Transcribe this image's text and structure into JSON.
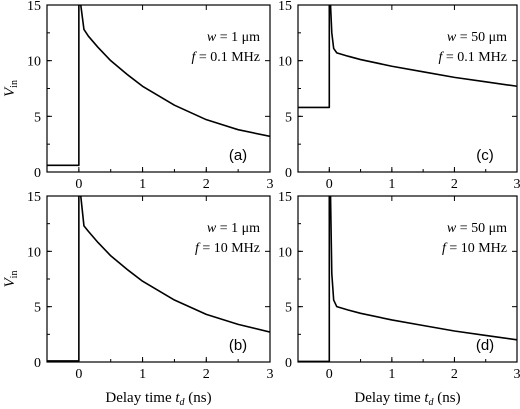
{
  "chart_data": [
    {
      "type": "line",
      "panel": "a",
      "label": "(a)",
      "params": [
        {
          "sym": "w",
          "rest": " = 1 μm"
        },
        {
          "sym": "f",
          "rest": " = 0.1 MHz"
        }
      ],
      "xlim": [
        -0.5,
        3
      ],
      "ylim": [
        0,
        15
      ],
      "xticks": [
        "0",
        "1",
        "2",
        "3"
      ],
      "yticks": [
        "0",
        "5",
        "10",
        "15"
      ],
      "ylabel": {
        "main": "V",
        "sub": "in"
      },
      "xlabel": "",
      "series": [
        {
          "x": [
            -0.5,
            -0.02,
            -0.02,
            0.0,
            0.0,
            0.03,
            0.08,
            0.15,
            0.3,
            0.5,
            0.75,
            1.0,
            1.5,
            2.0,
            2.5,
            3.0
          ],
          "y": [
            0.6,
            0.6,
            0.6,
            0.6,
            15,
            15,
            12.8,
            12.2,
            11.2,
            10.0,
            8.8,
            7.7,
            6.0,
            4.7,
            3.8,
            3.2
          ]
        }
      ]
    },
    {
      "type": "line",
      "panel": "c",
      "label": "(c)",
      "params": [
        {
          "sym": "w",
          "rest": " = 50 μm"
        },
        {
          "sym": "f",
          "rest": " = 0.1 MHz"
        }
      ],
      "xlim": [
        -0.5,
        3
      ],
      "ylim": [
        0,
        15
      ],
      "xticks": [
        "0",
        "1",
        "2",
        "3"
      ],
      "yticks": [
        "0",
        "5",
        "10",
        "15"
      ],
      "ylabel": {
        "main": "",
        "sub": ""
      },
      "xlabel": "",
      "series": [
        {
          "x": [
            -0.5,
            -0.02,
            0.0,
            0.0,
            0.02,
            0.04,
            0.07,
            0.12,
            0.3,
            0.5,
            1.0,
            1.5,
            2.0,
            2.5,
            3.0
          ],
          "y": [
            5.8,
            5.8,
            5.8,
            15,
            15,
            12.5,
            11.1,
            10.7,
            10.4,
            10.1,
            9.5,
            9.0,
            8.5,
            8.1,
            7.7
          ]
        }
      ]
    },
    {
      "type": "line",
      "panel": "b",
      "label": "(b)",
      "params": [
        {
          "sym": "w",
          "rest": " = 1 μm"
        },
        {
          "sym": "f",
          "rest": " = 10 MHz"
        }
      ],
      "xlim": [
        -0.5,
        3
      ],
      "ylim": [
        0,
        15
      ],
      "xticks": [
        "0",
        "1",
        "2",
        "3"
      ],
      "yticks": [
        "0",
        "5",
        "10",
        "15"
      ],
      "ylabel": {
        "main": "V",
        "sub": "in"
      },
      "xlabel": {
        "main": "Delay time ",
        "sym": "t",
        "sub": "d",
        "unit": " (ns)"
      },
      "series": [
        {
          "x": [
            -0.5,
            -0.02,
            0.0,
            0.0,
            0.03,
            0.08,
            0.15,
            0.3,
            0.5,
            0.75,
            1.0,
            1.5,
            2.0,
            2.5,
            3.0
          ],
          "y": [
            0.1,
            0.1,
            0.1,
            15,
            15,
            12.3,
            11.8,
            10.8,
            9.6,
            8.4,
            7.3,
            5.6,
            4.3,
            3.4,
            2.7
          ]
        }
      ]
    },
    {
      "type": "line",
      "panel": "d",
      "label": "(d)",
      "params": [
        {
          "sym": "w",
          "rest": " = 50 μm"
        },
        {
          "sym": "f",
          "rest": " = 10 MHz"
        }
      ],
      "xlim": [
        -0.5,
        3
      ],
      "ylim": [
        0,
        15
      ],
      "xticks": [
        "0",
        "1",
        "2",
        "3"
      ],
      "yticks": [
        "0",
        "5",
        "10",
        "15"
      ],
      "ylabel": {
        "main": "",
        "sub": ""
      },
      "xlabel": {
        "main": "Delay time ",
        "sym": "t",
        "sub": "d",
        "unit": " (ns)"
      },
      "series": [
        {
          "x": [
            -0.5,
            -0.02,
            0.0,
            0.0,
            0.02,
            0.04,
            0.07,
            0.12,
            0.3,
            0.5,
            1.0,
            1.5,
            2.0,
            2.5,
            3.0
          ],
          "y": [
            0.05,
            0.05,
            0.05,
            15,
            15,
            8.0,
            5.6,
            5.0,
            4.7,
            4.4,
            3.8,
            3.3,
            2.8,
            2.4,
            2.0
          ]
        }
      ]
    }
  ]
}
